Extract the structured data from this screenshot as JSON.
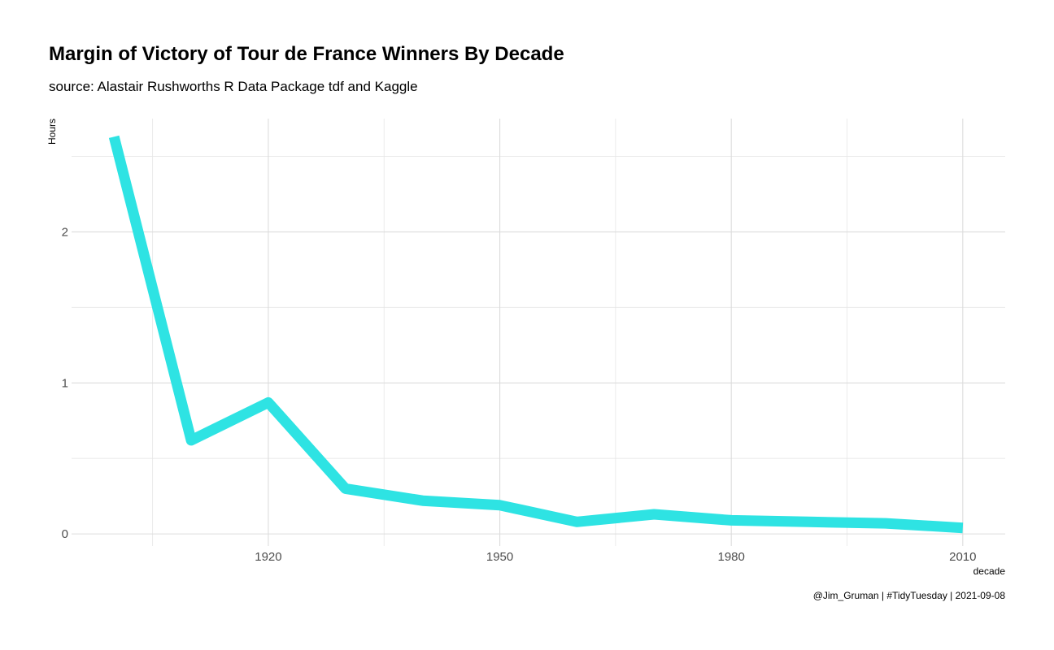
{
  "chart": {
    "title": "Margin of Victory of Tour de France Winners By Decade",
    "subtitle": "source: Alastair Rushworths R Data Package tdf and Kaggle",
    "caption": "@Jim_Gruman | #TidyTuesday | 2021-09-08"
  },
  "chart_data": {
    "type": "line",
    "title": "Margin of Victory of Tour de France Winners By Decade",
    "subtitle": "source: Alastair Rushworths R Data Package tdf and Kaggle",
    "xlabel": "decade",
    "ylabel": "Hours",
    "x": [
      1900,
      1910,
      1920,
      1930,
      1940,
      1950,
      1960,
      1970,
      1980,
      1990,
      2000,
      2010
    ],
    "series": [
      {
        "values": [
          2.63,
          0.62,
          0.87,
          0.3,
          0.22,
          0.19,
          0.08,
          0.13,
          0.09,
          0.08,
          0.07,
          0.04
        ]
      }
    ],
    "xlim": [
      1894.5,
      2015.5
    ],
    "ylim": [
      -0.08,
      2.75
    ],
    "x_major_ticks": [
      1920,
      1950,
      1980,
      2010
    ],
    "x_minor_ticks": [
      1905,
      1935,
      1965,
      1995
    ],
    "y_major_ticks": [
      0,
      1,
      2
    ],
    "y_minor_ticks": [
      0.5,
      1.5,
      2.5
    ],
    "x_tick_labels": [
      "1920",
      "1950",
      "1980",
      "2010"
    ],
    "y_tick_labels": [
      "0",
      "1",
      "2"
    ],
    "grid": true,
    "legend": "none",
    "line_color": "#2ee3e3"
  }
}
